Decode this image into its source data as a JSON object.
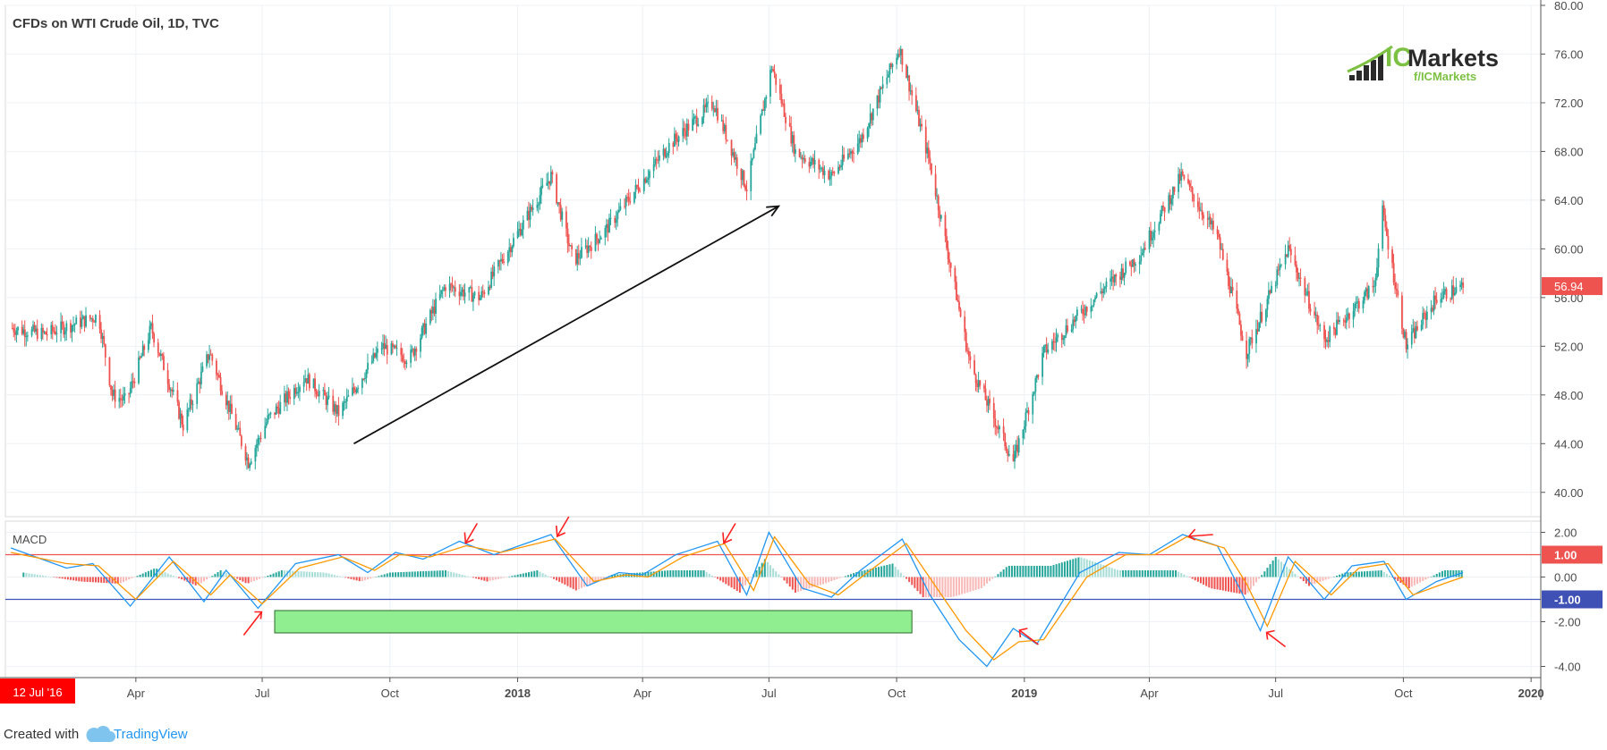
{
  "header": {
    "title": "CFDs on WTI Crude Oil, 1D, TVC"
  },
  "logo": {
    "brand_main": "IC",
    "brand_rest": "Markets",
    "tagline": "f/ICMarkets"
  },
  "footer": {
    "created_with": "Created with",
    "brand": "TradingView"
  },
  "colors": {
    "up": "#26a69a",
    "down": "#ef5350",
    "macd": "#2196f3",
    "signal": "#ff9800",
    "hist_up": "#26a69a",
    "hist_down": "#ef5350",
    "upper_level": "#ef5350",
    "lower_level": "#3f51b5",
    "box_fill": "#90ee90"
  },
  "chart_data": [
    {
      "type": "candlestick",
      "title": "CFDs on WTI Crude Oil, 1D, TVC",
      "ylim": [
        38,
        80
      ],
      "y_ticks": [
        "80.00",
        "76.00",
        "72.00",
        "68.00",
        "64.00",
        "60.00",
        "56.00",
        "52.00",
        "48.00",
        "44.00",
        "40.00"
      ],
      "last_price_label": "56.94",
      "x_ticks": [
        "Apr",
        "Jul",
        "Oct",
        "2018",
        "Apr",
        "Jul",
        "Oct",
        "2019",
        "Apr",
        "Jul",
        "Oct",
        "2020"
      ],
      "x_start_label": "12 Jul '16",
      "price_path": [
        [
          "2017-01-01",
          53.5
        ],
        [
          "2017-01-25",
          53.0
        ],
        [
          "2017-02-20",
          54.0
        ],
        [
          "2017-03-05",
          54.5
        ],
        [
          "2017-03-15",
          48.0
        ],
        [
          "2017-03-25",
          47.5
        ],
        [
          "2017-04-12",
          53.5
        ],
        [
          "2017-05-05",
          45.5
        ],
        [
          "2017-05-24",
          51.5
        ],
        [
          "2017-06-21",
          42.5
        ],
        [
          "2017-07-05",
          46.0
        ],
        [
          "2017-08-01",
          49.5
        ],
        [
          "2017-08-25",
          46.5
        ],
        [
          "2017-09-25",
          52.0
        ],
        [
          "2017-10-15",
          51.0
        ],
        [
          "2017-11-10",
          57.0
        ],
        [
          "2017-12-05",
          56.0
        ],
        [
          "2018-01-25",
          66.0
        ],
        [
          "2018-02-10",
          59.0
        ],
        [
          "2018-03-05",
          61.5
        ],
        [
          "2018-04-20",
          68.5
        ],
        [
          "2018-05-22",
          72.0
        ],
        [
          "2018-06-15",
          65.0
        ],
        [
          "2018-07-03",
          75.0
        ],
        [
          "2018-07-20",
          68.0
        ],
        [
          "2018-08-15",
          66.0
        ],
        [
          "2018-09-05",
          69.0
        ],
        [
          "2018-10-03",
          76.5
        ],
        [
          "2018-10-25",
          67.0
        ],
        [
          "2018-11-23",
          50.5
        ],
        [
          "2018-12-24",
          42.5
        ],
        [
          "2019-01-15",
          51.5
        ],
        [
          "2019-02-25",
          56.5
        ],
        [
          "2019-03-25",
          59.5
        ],
        [
          "2019-04-24",
          66.0
        ],
        [
          "2019-05-20",
          61.0
        ],
        [
          "2019-06-10",
          51.5
        ],
        [
          "2019-07-10",
          60.0
        ],
        [
          "2019-08-05",
          52.5
        ],
        [
          "2019-09-10",
          57.0
        ],
        [
          "2019-09-16",
          63.0
        ],
        [
          "2019-10-03",
          52.0
        ],
        [
          "2019-10-25",
          56.0
        ],
        [
          "2019-11-13",
          56.9
        ]
      ]
    },
    {
      "type": "line",
      "title": "MACD",
      "ylim": [
        -4.5,
        2.5
      ],
      "y_ticks": [
        "2.00",
        "0.00",
        "-2.00",
        "-4.00"
      ],
      "levels": [
        {
          "value": 1.0,
          "label": "1.00"
        },
        {
          "value": -1.0,
          "label": "-1.00"
        }
      ],
      "series": [
        {
          "name": "MACD",
          "points": [
            [
              "2017-01-01",
              1.3
            ],
            [
              "2017-02-10",
              0.4
            ],
            [
              "2017-03-01",
              0.6
            ],
            [
              "2017-03-28",
              -1.3
            ],
            [
              "2017-04-25",
              0.9
            ],
            [
              "2017-05-20",
              -1.1
            ],
            [
              "2017-06-05",
              0.3
            ],
            [
              "2017-06-28",
              -1.4
            ],
            [
              "2017-07-25",
              0.6
            ],
            [
              "2017-08-25",
              1.0
            ],
            [
              "2017-09-15",
              0.2
            ],
            [
              "2017-10-05",
              1.1
            ],
            [
              "2017-10-25",
              0.8
            ],
            [
              "2017-11-20",
              1.6
            ],
            [
              "2017-12-15",
              1.0
            ],
            [
              "2018-01-25",
              1.9
            ],
            [
              "2018-02-20",
              -0.4
            ],
            [
              "2018-03-15",
              0.2
            ],
            [
              "2018-04-01",
              0.1
            ],
            [
              "2018-04-25",
              1.0
            ],
            [
              "2018-05-25",
              1.6
            ],
            [
              "2018-06-15",
              -0.8
            ],
            [
              "2018-07-01",
              2.0
            ],
            [
              "2018-07-25",
              -0.5
            ],
            [
              "2018-08-15",
              -0.9
            ],
            [
              "2018-09-05",
              0.3
            ],
            [
              "2018-10-05",
              1.7
            ],
            [
              "2018-10-25",
              -0.8
            ],
            [
              "2018-11-15",
              -2.8
            ],
            [
              "2018-12-05",
              -4.0
            ],
            [
              "2018-12-24",
              -2.3
            ],
            [
              "2019-01-10",
              -3.0
            ],
            [
              "2019-02-10",
              0.2
            ],
            [
              "2019-03-10",
              1.1
            ],
            [
              "2019-04-01",
              1.0
            ],
            [
              "2019-04-25",
              1.9
            ],
            [
              "2019-05-20",
              1.4
            ],
            [
              "2019-06-05",
              -0.5
            ],
            [
              "2019-06-20",
              -2.4
            ],
            [
              "2019-07-10",
              0.9
            ],
            [
              "2019-08-05",
              -1.0
            ],
            [
              "2019-08-25",
              0.5
            ],
            [
              "2019-09-17",
              0.7
            ],
            [
              "2019-10-03",
              -1.0
            ],
            [
              "2019-10-25",
              -0.2
            ],
            [
              "2019-11-13",
              0.2
            ]
          ]
        },
        {
          "name": "Signal",
          "points": [
            [
              "2017-01-01",
              1.1
            ],
            [
              "2017-02-10",
              0.6
            ],
            [
              "2017-03-05",
              0.5
            ],
            [
              "2017-04-01",
              -1.0
            ],
            [
              "2017-04-28",
              0.7
            ],
            [
              "2017-05-25",
              -0.8
            ],
            [
              "2017-06-08",
              0.1
            ],
            [
              "2017-07-01",
              -1.2
            ],
            [
              "2017-07-28",
              0.4
            ],
            [
              "2017-08-28",
              0.9
            ],
            [
              "2017-09-20",
              0.3
            ],
            [
              "2017-10-08",
              1.0
            ],
            [
              "2017-10-30",
              0.9
            ],
            [
              "2017-11-25",
              1.4
            ],
            [
              "2017-12-20",
              1.1
            ],
            [
              "2018-01-28",
              1.7
            ],
            [
              "2018-02-25",
              -0.2
            ],
            [
              "2018-03-20",
              0.1
            ],
            [
              "2018-04-05",
              0.0
            ],
            [
              "2018-04-30",
              0.9
            ],
            [
              "2018-05-30",
              1.5
            ],
            [
              "2018-06-20",
              -0.6
            ],
            [
              "2018-07-05",
              1.8
            ],
            [
              "2018-07-30",
              -0.3
            ],
            [
              "2018-08-20",
              -0.8
            ],
            [
              "2018-09-10",
              0.2
            ],
            [
              "2018-10-08",
              1.5
            ],
            [
              "2018-10-30",
              -0.5
            ],
            [
              "2018-11-20",
              -2.4
            ],
            [
              "2018-12-10",
              -3.7
            ],
            [
              "2018-12-28",
              -2.9
            ],
            [
              "2019-01-15",
              -2.8
            ],
            [
              "2019-02-15",
              0.0
            ],
            [
              "2019-03-15",
              1.0
            ],
            [
              "2019-04-05",
              1.0
            ],
            [
              "2019-04-28",
              1.8
            ],
            [
              "2019-05-25",
              1.3
            ],
            [
              "2019-06-10",
              -0.3
            ],
            [
              "2019-06-25",
              -2.2
            ],
            [
              "2019-07-15",
              0.7
            ],
            [
              "2019-08-10",
              -0.8
            ],
            [
              "2019-08-30",
              0.4
            ],
            [
              "2019-09-20",
              0.6
            ],
            [
              "2019-10-08",
              -0.8
            ],
            [
              "2019-10-30",
              -0.3
            ],
            [
              "2019-11-13",
              0.0
            ]
          ]
        }
      ],
      "histogram": [
        [
          "2017-01-10",
          0.2
        ],
        [
          "2017-02-20",
          -0.2
        ],
        [
          "2017-03-20",
          -0.3
        ],
        [
          "2017-04-15",
          0.4
        ],
        [
          "2017-05-15",
          -0.4
        ],
        [
          "2017-06-01",
          0.3
        ],
        [
          "2017-06-20",
          -0.3
        ],
        [
          "2017-07-15",
          0.3
        ],
        [
          "2017-08-15",
          0.2
        ],
        [
          "2017-09-10",
          -0.2
        ],
        [
          "2017-10-01",
          0.2
        ],
        [
          "2017-11-10",
          0.3
        ],
        [
          "2017-12-10",
          -0.2
        ],
        [
          "2018-01-15",
          0.3
        ],
        [
          "2018-02-12",
          -0.6
        ],
        [
          "2018-03-10",
          0.1
        ],
        [
          "2018-04-20",
          0.3
        ],
        [
          "2018-05-15",
          0.3
        ],
        [
          "2018-06-10",
          -0.7
        ],
        [
          "2018-06-28",
          0.8
        ],
        [
          "2018-07-20",
          -0.7
        ],
        [
          "2018-08-10",
          -0.3
        ],
        [
          "2018-09-01",
          0.2
        ],
        [
          "2018-09-28",
          0.6
        ],
        [
          "2018-10-20",
          -0.9
        ],
        [
          "2018-11-10",
          -0.9
        ],
        [
          "2018-12-01",
          -0.5
        ],
        [
          "2018-12-20",
          0.5
        ],
        [
          "2019-01-20",
          0.5
        ],
        [
          "2019-02-10",
          0.9
        ],
        [
          "2019-03-10",
          0.3
        ],
        [
          "2019-04-20",
          0.3
        ],
        [
          "2019-05-15",
          -0.5
        ],
        [
          "2019-06-10",
          -0.8
        ],
        [
          "2019-07-01",
          0.9
        ],
        [
          "2019-07-25",
          -0.4
        ],
        [
          "2019-08-20",
          0.2
        ],
        [
          "2019-09-15",
          0.3
        ],
        [
          "2019-10-05",
          -0.5
        ],
        [
          "2019-10-30",
          0.3
        ],
        [
          "2019-11-12",
          0.3
        ]
      ]
    }
  ]
}
